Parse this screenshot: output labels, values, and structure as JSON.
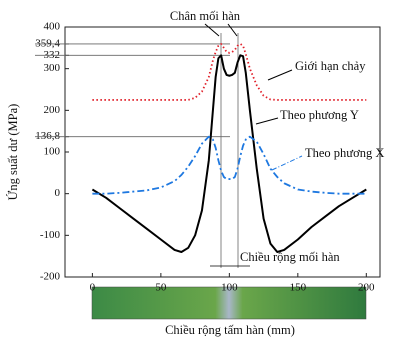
{
  "chart_data": {
    "type": "line",
    "xlabel": "Chiều rộng tấm hàn (mm)",
    "ylabel": "Ứng suất dư (MPa)",
    "annotations": {
      "weld_toe": "Chân mối hàn",
      "weld_width": "Chiều rộng mối hàn"
    },
    "x": [
      0,
      10,
      20,
      30,
      40,
      50,
      60,
      65,
      70,
      75,
      80,
      85,
      88,
      90,
      92,
      94,
      96,
      98,
      100,
      102,
      104,
      106,
      108,
      110,
      112,
      115,
      120,
      125,
      130,
      135,
      140,
      150,
      160,
      170,
      180,
      190,
      200
    ],
    "series": [
      {
        "name": "Giới hạn chảy",
        "color": "#e0202a",
        "dash": "dotted",
        "values": [
          225,
          225,
          225,
          225,
          225,
          225,
          225,
          225,
          225,
          230,
          245,
          280,
          320,
          340,
          355,
          359.4,
          350,
          340,
          338,
          340,
          345,
          355,
          359.4,
          355,
          335,
          300,
          260,
          235,
          226,
          225,
          225,
          225,
          225,
          225,
          225,
          225,
          225
        ]
      },
      {
        "name": "Theo phương Y",
        "color": "#000000",
        "dash": "solid",
        "values": [
          10,
          -10,
          -35,
          -60,
          -85,
          -110,
          -135,
          -140,
          -130,
          -100,
          -40,
          80,
          200,
          280,
          325,
          332,
          300,
          285,
          283,
          285,
          290,
          315,
          332,
          330,
          290,
          200,
          60,
          -60,
          -120,
          -140,
          -135,
          -110,
          -80,
          -55,
          -30,
          -10,
          10
        ]
      },
      {
        "name": "Theo phương X",
        "color": "#1e78e0",
        "dash": "dashdot",
        "values": [
          0,
          0,
          2,
          5,
          8,
          15,
          30,
          45,
          65,
          90,
          120,
          136.8,
          130,
          110,
          80,
          55,
          40,
          35,
          35,
          35,
          40,
          60,
          90,
          115,
          130,
          136.8,
          125,
          95,
          60,
          40,
          25,
          10,
          5,
          2,
          0,
          0,
          0
        ]
      }
    ],
    "xlim": [
      -20,
      210
    ],
    "ylim": [
      -200,
      400
    ],
    "xticks": [
      0,
      50,
      100,
      150,
      200
    ],
    "yticks": [
      -200,
      -100,
      0,
      100,
      {
        "value": 136.8,
        "label": "136,8"
      },
      200,
      300,
      332,
      {
        "value": 359.4,
        "label": "359,4"
      },
      400
    ]
  }
}
